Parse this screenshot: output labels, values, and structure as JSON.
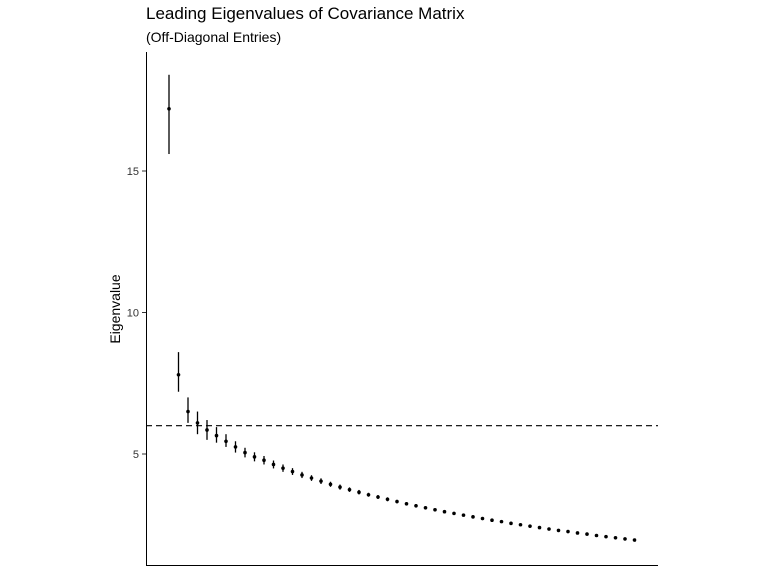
{
  "chart_data": {
    "type": "scatter",
    "title": "Leading Eigenvalues of Covariance Matrix",
    "subtitle": "(Off-Diagonal Entries)",
    "xlabel": "",
    "ylabel": "Eigenvalue",
    "ylim": [
      1.0,
      19.0
    ],
    "y_ticks": [
      5,
      10,
      15
    ],
    "grid": false,
    "reference_line": {
      "y": 6.0,
      "style": "dashed"
    },
    "points": [
      {
        "x": 1,
        "y": 17.2,
        "lo": 15.6,
        "hi": 18.4
      },
      {
        "x": 2,
        "y": 7.8,
        "lo": 7.2,
        "hi": 8.6
      },
      {
        "x": 3,
        "y": 6.5,
        "lo": 6.1,
        "hi": 7.0
      },
      {
        "x": 4,
        "y": 6.1,
        "lo": 5.7,
        "hi": 6.5
      },
      {
        "x": 5,
        "y": 5.85,
        "lo": 5.5,
        "hi": 6.2
      },
      {
        "x": 6,
        "y": 5.65,
        "lo": 5.4,
        "hi": 5.95
      },
      {
        "x": 7,
        "y": 5.45,
        "lo": 5.25,
        "hi": 5.7
      },
      {
        "x": 8,
        "y": 5.25,
        "lo": 5.05,
        "hi": 5.45
      },
      {
        "x": 9,
        "y": 5.05,
        "lo": 4.88,
        "hi": 5.22
      },
      {
        "x": 10,
        "y": 4.9,
        "lo": 4.74,
        "hi": 5.06
      },
      {
        "x": 11,
        "y": 4.78,
        "lo": 4.63,
        "hi": 4.93
      },
      {
        "x": 12,
        "y": 4.63,
        "lo": 4.49,
        "hi": 4.77
      },
      {
        "x": 13,
        "y": 4.5,
        "lo": 4.37,
        "hi": 4.63
      },
      {
        "x": 14,
        "y": 4.38,
        "lo": 4.26,
        "hi": 4.5
      },
      {
        "x": 15,
        "y": 4.26,
        "lo": 4.15,
        "hi": 4.37
      },
      {
        "x": 16,
        "y": 4.15,
        "lo": 4.05,
        "hi": 4.25
      },
      {
        "x": 17,
        "y": 4.04,
        "lo": 3.94,
        "hi": 4.14
      },
      {
        "x": 18,
        "y": 3.93,
        "lo": 3.84,
        "hi": 4.02
      },
      {
        "x": 19,
        "y": 3.83,
        "lo": 3.74,
        "hi": 3.92
      },
      {
        "x": 20,
        "y": 3.74,
        "lo": 3.66,
        "hi": 3.82
      },
      {
        "x": 21,
        "y": 3.65,
        "lo": 3.57,
        "hi": 3.73
      },
      {
        "x": 22,
        "y": 3.56,
        "lo": 3.49,
        "hi": 3.63
      },
      {
        "x": 23,
        "y": 3.48,
        "lo": 3.41,
        "hi": 3.55
      },
      {
        "x": 24,
        "y": 3.4,
        "lo": 3.33,
        "hi": 3.47
      },
      {
        "x": 25,
        "y": 3.32,
        "lo": 3.26,
        "hi": 3.38
      },
      {
        "x": 26,
        "y": 3.24,
        "lo": 3.18,
        "hi": 3.3
      },
      {
        "x": 27,
        "y": 3.17,
        "lo": 3.11,
        "hi": 3.23
      },
      {
        "x": 28,
        "y": 3.1,
        "lo": 3.05,
        "hi": 3.15
      },
      {
        "x": 29,
        "y": 3.03,
        "lo": 2.98,
        "hi": 3.08
      },
      {
        "x": 30,
        "y": 2.96,
        "lo": 2.91,
        "hi": 3.01
      },
      {
        "x": 31,
        "y": 2.9,
        "lo": 2.85,
        "hi": 2.95
      },
      {
        "x": 32,
        "y": 2.84,
        "lo": 2.79,
        "hi": 2.89
      },
      {
        "x": 33,
        "y": 2.78,
        "lo": 2.74,
        "hi": 2.82
      },
      {
        "x": 34,
        "y": 2.72,
        "lo": 2.68,
        "hi": 2.76
      },
      {
        "x": 35,
        "y": 2.66,
        "lo": 2.62,
        "hi": 2.7
      },
      {
        "x": 36,
        "y": 2.61,
        "lo": 2.57,
        "hi": 2.65
      },
      {
        "x": 37,
        "y": 2.55,
        "lo": 2.51,
        "hi": 2.59
      },
      {
        "x": 38,
        "y": 2.5,
        "lo": 2.46,
        "hi": 2.54
      },
      {
        "x": 39,
        "y": 2.45,
        "lo": 2.41,
        "hi": 2.49
      },
      {
        "x": 40,
        "y": 2.4,
        "lo": 2.37,
        "hi": 2.43
      },
      {
        "x": 41,
        "y": 2.35,
        "lo": 2.32,
        "hi": 2.38
      },
      {
        "x": 42,
        "y": 2.3,
        "lo": 2.27,
        "hi": 2.33
      },
      {
        "x": 43,
        "y": 2.26,
        "lo": 2.23,
        "hi": 2.29
      },
      {
        "x": 44,
        "y": 2.21,
        "lo": 2.18,
        "hi": 2.24
      },
      {
        "x": 45,
        "y": 2.17,
        "lo": 2.14,
        "hi": 2.2
      },
      {
        "x": 46,
        "y": 2.12,
        "lo": 2.09,
        "hi": 2.15
      },
      {
        "x": 47,
        "y": 2.08,
        "lo": 2.05,
        "hi": 2.11
      },
      {
        "x": 48,
        "y": 2.04,
        "lo": 2.01,
        "hi": 2.07
      },
      {
        "x": 49,
        "y": 2.0,
        "lo": 1.97,
        "hi": 2.03
      },
      {
        "x": 50,
        "y": 1.96,
        "lo": 1.93,
        "hi": 1.99
      }
    ]
  }
}
